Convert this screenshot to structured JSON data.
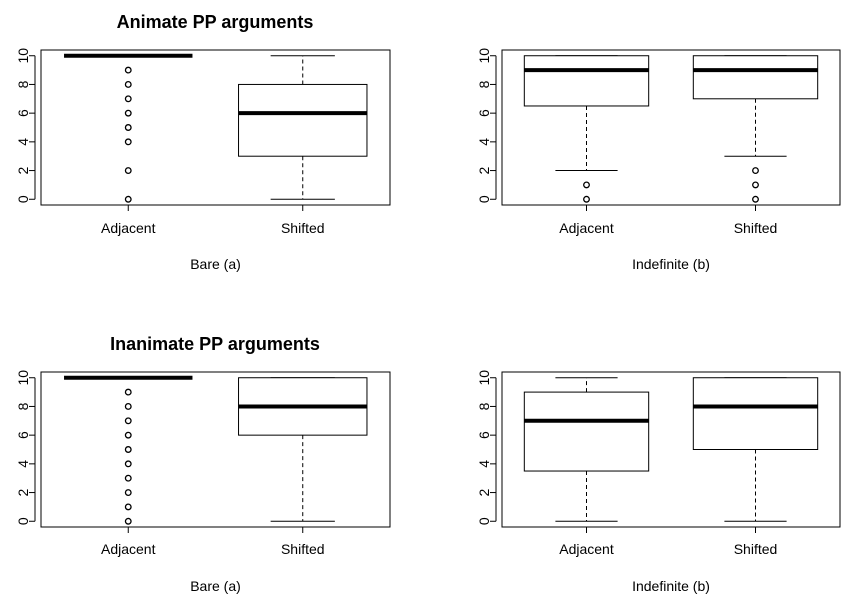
{
  "chart_data": [
    {
      "type": "boxplot",
      "title": "Animate PP arguments",
      "xlabel": "Bare (a)",
      "ylabel": "",
      "ylim": [
        0,
        10
      ],
      "yticks": [
        0,
        2,
        4,
        6,
        8,
        10
      ],
      "categories": [
        "Adjacent",
        "Shifted"
      ],
      "boxes": [
        {
          "min": 10,
          "q1": 10,
          "median": 10,
          "q3": 10,
          "max": 10,
          "outliers": [
            9,
            8,
            7,
            6,
            5,
            4,
            2,
            0
          ]
        },
        {
          "min": 0,
          "q1": 3,
          "median": 6,
          "q3": 8,
          "max": 10,
          "outliers": []
        }
      ]
    },
    {
      "type": "boxplot",
      "title": "",
      "xlabel": "Indefinite (b)",
      "ylabel": "",
      "ylim": [
        0,
        10
      ],
      "yticks": [
        0,
        2,
        4,
        6,
        8,
        10
      ],
      "categories": [
        "Adjacent",
        "Shifted"
      ],
      "boxes": [
        {
          "min": 2,
          "q1": 6.5,
          "median": 9,
          "q3": 10,
          "max": 10,
          "outliers": [
            1,
            0
          ]
        },
        {
          "min": 3,
          "q1": 7,
          "median": 9,
          "q3": 10,
          "max": 10,
          "outliers": [
            2,
            1,
            0
          ]
        }
      ]
    },
    {
      "type": "boxplot",
      "title": "Inanimate PP arguments",
      "xlabel": "Bare (a)",
      "ylabel": "",
      "ylim": [
        0,
        10
      ],
      "yticks": [
        0,
        2,
        4,
        6,
        8,
        10
      ],
      "categories": [
        "Adjacent",
        "Shifted"
      ],
      "boxes": [
        {
          "min": 10,
          "q1": 10,
          "median": 10,
          "q3": 10,
          "max": 10,
          "outliers": [
            9,
            8,
            7,
            6,
            5,
            4,
            3,
            2,
            1,
            0
          ]
        },
        {
          "min": 0,
          "q1": 6,
          "median": 8,
          "q3": 10,
          "max": 10,
          "outliers": []
        }
      ]
    },
    {
      "type": "boxplot",
      "title": "",
      "xlabel": "Indefinite (b)",
      "ylabel": "",
      "ylim": [
        0,
        10
      ],
      "yticks": [
        0,
        2,
        4,
        6,
        8,
        10
      ],
      "categories": [
        "Adjacent",
        "Shifted"
      ],
      "boxes": [
        {
          "min": 0,
          "q1": 3.5,
          "median": 7,
          "q3": 9,
          "max": 10,
          "outliers": []
        },
        {
          "min": 0,
          "q1": 5,
          "median": 8,
          "q3": 10,
          "max": 10,
          "outliers": []
        }
      ]
    }
  ]
}
